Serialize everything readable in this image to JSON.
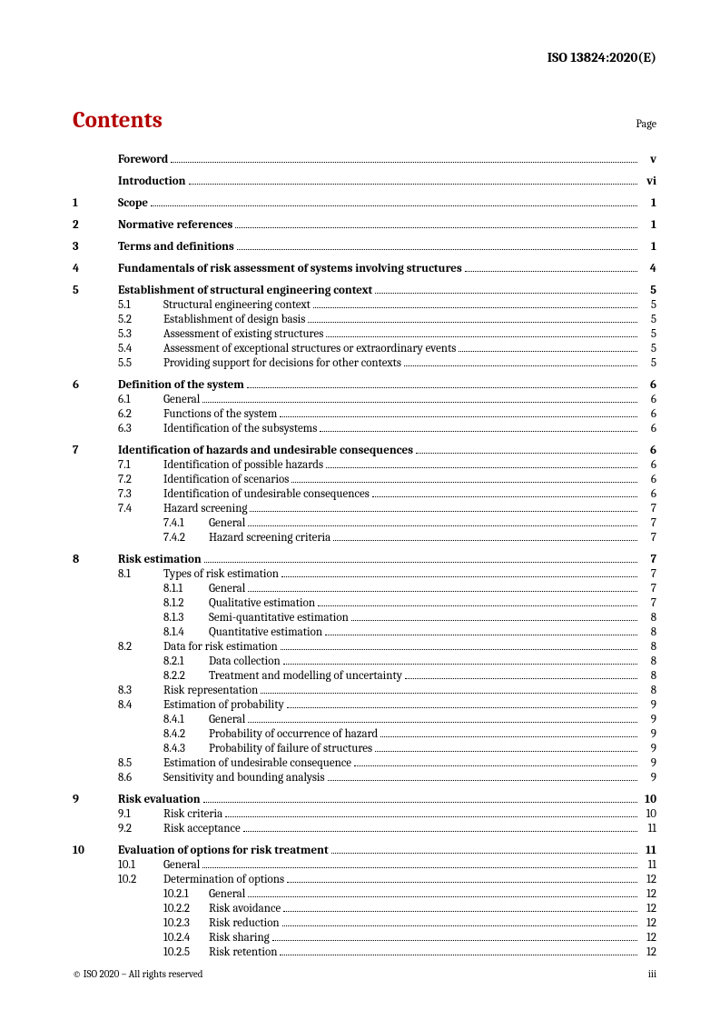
{
  "doc_id": "ISO 13824:2020(E)",
  "contents_title": "Contents",
  "page_label": "Page",
  "footer_left": "© ISO 2020 – All rights reserved",
  "footer_right": "iii",
  "toc": [
    {
      "type": "group",
      "rows": [
        {
          "level": 1,
          "num": "",
          "title": "Foreword",
          "page": "v",
          "bold": true
        }
      ]
    },
    {
      "type": "group",
      "rows": [
        {
          "level": 1,
          "num": "",
          "title": "Introduction",
          "page": "vi",
          "bold": true
        }
      ]
    },
    {
      "type": "group",
      "rows": [
        {
          "level": 1,
          "num": "1",
          "title": "Scope",
          "page": "1",
          "bold": true
        }
      ]
    },
    {
      "type": "group",
      "rows": [
        {
          "level": 1,
          "num": "2",
          "title": "Normative references",
          "page": "1",
          "bold": true
        }
      ]
    },
    {
      "type": "group",
      "rows": [
        {
          "level": 1,
          "num": "3",
          "title": "Terms and definitions",
          "page": "1",
          "bold": true
        }
      ]
    },
    {
      "type": "group",
      "rows": [
        {
          "level": 1,
          "num": "4",
          "title": "Fundamentals of risk assessment of systems involving structures",
          "page": "4",
          "bold": true
        }
      ]
    },
    {
      "type": "group",
      "rows": [
        {
          "level": 1,
          "num": "5",
          "title": "Establishment of structural engineering context",
          "page": "5",
          "bold": true
        },
        {
          "level": 2,
          "num": "5.1",
          "title": "Structural engineering context",
          "page": "5"
        },
        {
          "level": 2,
          "num": "5.2",
          "title": "Establishment of design basis",
          "page": "5"
        },
        {
          "level": 2,
          "num": "5.3",
          "title": "Assessment of existing structures",
          "page": "5"
        },
        {
          "level": 2,
          "num": "5.4",
          "title": "Assessment of exceptional structures or extraordinary events",
          "page": "5"
        },
        {
          "level": 2,
          "num": "5.5",
          "title": "Providing support for decisions for other contexts",
          "page": "5"
        }
      ]
    },
    {
      "type": "group",
      "rows": [
        {
          "level": 1,
          "num": "6",
          "title": "Definition of the system",
          "page": "6",
          "bold": true
        },
        {
          "level": 2,
          "num": "6.1",
          "title": "General",
          "page": "6"
        },
        {
          "level": 2,
          "num": "6.2",
          "title": "Functions of the system",
          "page": "6"
        },
        {
          "level": 2,
          "num": "6.3",
          "title": "Identification of the subsystems",
          "page": "6"
        }
      ]
    },
    {
      "type": "group",
      "rows": [
        {
          "level": 1,
          "num": "7",
          "title": "Identification of hazards and undesirable consequences",
          "page": "6",
          "bold": true
        },
        {
          "level": 2,
          "num": "7.1",
          "title": "Identification of possible hazards",
          "page": "6"
        },
        {
          "level": 2,
          "num": "7.2",
          "title": "Identification of scenarios",
          "page": "6"
        },
        {
          "level": 2,
          "num": "7.3",
          "title": "Identification of undesirable consequences",
          "page": "6"
        },
        {
          "level": 2,
          "num": "7.4",
          "title": "Hazard screening",
          "page": "7"
        },
        {
          "level": 3,
          "num": "7.4.1",
          "title": "General",
          "page": "7"
        },
        {
          "level": 3,
          "num": "7.4.2",
          "title": "Hazard screening criteria",
          "page": "7"
        }
      ]
    },
    {
      "type": "group",
      "rows": [
        {
          "level": 1,
          "num": "8",
          "title": "Risk estimation",
          "page": "7",
          "bold": true
        },
        {
          "level": 2,
          "num": "8.1",
          "title": "Types of risk estimation",
          "page": "7"
        },
        {
          "level": 3,
          "num": "8.1.1",
          "title": "General",
          "page": "7"
        },
        {
          "level": 3,
          "num": "8.1.2",
          "title": "Qualitative estimation",
          "page": "7"
        },
        {
          "level": 3,
          "num": "8.1.3",
          "title": "Semi-quantitative estimation",
          "page": "8"
        },
        {
          "level": 3,
          "num": "8.1.4",
          "title": "Quantitative estimation",
          "page": "8"
        },
        {
          "level": 2,
          "num": "8.2",
          "title": "Data for risk estimation",
          "page": "8"
        },
        {
          "level": 3,
          "num": "8.2.1",
          "title": "Data collection",
          "page": "8"
        },
        {
          "level": 3,
          "num": "8.2.2",
          "title": "Treatment and modelling of uncertainty",
          "page": "8"
        },
        {
          "level": 2,
          "num": "8.3",
          "title": "Risk representation",
          "page": "8"
        },
        {
          "level": 2,
          "num": "8.4",
          "title": "Estimation of probability",
          "page": "9"
        },
        {
          "level": 3,
          "num": "8.4.1",
          "title": "General",
          "page": "9"
        },
        {
          "level": 3,
          "num": "8.4.2",
          "title": "Probability of occurrence of hazard",
          "page": "9"
        },
        {
          "level": 3,
          "num": "8.4.3",
          "title": "Probability of failure of structures",
          "page": "9"
        },
        {
          "level": 2,
          "num": "8.5",
          "title": "Estimation of undesirable consequence",
          "page": "9"
        },
        {
          "level": 2,
          "num": "8.6",
          "title": "Sensitivity and bounding analysis",
          "page": "9"
        }
      ]
    },
    {
      "type": "group",
      "rows": [
        {
          "level": 1,
          "num": "9",
          "title": "Risk evaluation",
          "page": "10",
          "bold": true
        },
        {
          "level": 2,
          "num": "9.1",
          "title": "Risk criteria",
          "page": "10"
        },
        {
          "level": 2,
          "num": "9.2",
          "title": "Risk acceptance",
          "page": "11"
        }
      ]
    },
    {
      "type": "group",
      "rows": [
        {
          "level": 1,
          "num": "10",
          "title": "Evaluation of options for risk treatment",
          "page": "11",
          "bold": true
        },
        {
          "level": 2,
          "num": "10.1",
          "title": "General",
          "page": "11"
        },
        {
          "level": 2,
          "num": "10.2",
          "title": "Determination of options",
          "page": "12"
        },
        {
          "level": 3,
          "num": "10.2.1",
          "title": "General",
          "page": "12"
        },
        {
          "level": 3,
          "num": "10.2.2",
          "title": "Risk avoidance",
          "page": "12"
        },
        {
          "level": 3,
          "num": "10.2.3",
          "title": "Risk reduction",
          "page": "12"
        },
        {
          "level": 3,
          "num": "10.2.4",
          "title": "Risk sharing",
          "page": "12"
        },
        {
          "level": 3,
          "num": "10.2.5",
          "title": "Risk retention",
          "page": "12"
        }
      ]
    }
  ],
  "colors": {
    "accent": "#b30000",
    "text": "#000000",
    "background": "#ffffff"
  }
}
